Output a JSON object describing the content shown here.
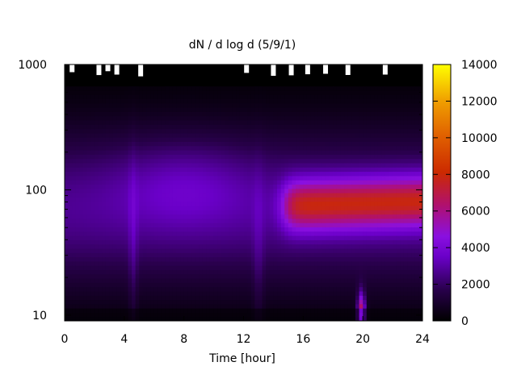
{
  "chart_data": {
    "type": "heatmap",
    "title": "dN / d log d (5/9/1)",
    "xlabel": "Time [hour]",
    "ylabel": "",
    "xlim": [
      0,
      24
    ],
    "ylim": [
      9,
      1000
    ],
    "y_scale": "log",
    "x_ticks": [
      "0",
      "4",
      "8",
      "12",
      "16",
      "20",
      "24"
    ],
    "x_tick_values": [
      0,
      4,
      8,
      12,
      16,
      20,
      24
    ],
    "y_ticks": [
      "10",
      "100",
      "1000"
    ],
    "y_tick_values": [
      10,
      100,
      1000
    ],
    "colorbar": {
      "min": 0,
      "max": 14000,
      "ticks": [
        "0",
        "2000",
        "4000",
        "6000",
        "8000",
        "10000",
        "12000",
        "14000"
      ],
      "tick_values": [
        0,
        2000,
        4000,
        6000,
        8000,
        10000,
        12000,
        14000
      ],
      "palette": "black-purple-red-orange-yellow"
    },
    "grid": false,
    "legend": "colorbar-right",
    "features": [
      {
        "description": "broad background band",
        "x_range": [
          0,
          24
        ],
        "y_range": [
          20,
          400
        ],
        "value": 2500
      },
      {
        "description": "enhanced mode",
        "x_range": [
          4,
          12
        ],
        "y_range": [
          70,
          200
        ],
        "value": 3800
      },
      {
        "description": "high-concentration band",
        "x_range": [
          14.5,
          24
        ],
        "y_range": [
          60,
          150
        ],
        "value": 7500
      },
      {
        "description": "burst",
        "x_range": [
          19.6,
          20.2
        ],
        "y_range": [
          9,
          20
        ],
        "value": 9000
      }
    ]
  },
  "colors": {
    "black": "#000000",
    "purple": "#7f00ff",
    "red": "#cc2200",
    "orange": "#e07000",
    "yellow": "#ffff00"
  }
}
